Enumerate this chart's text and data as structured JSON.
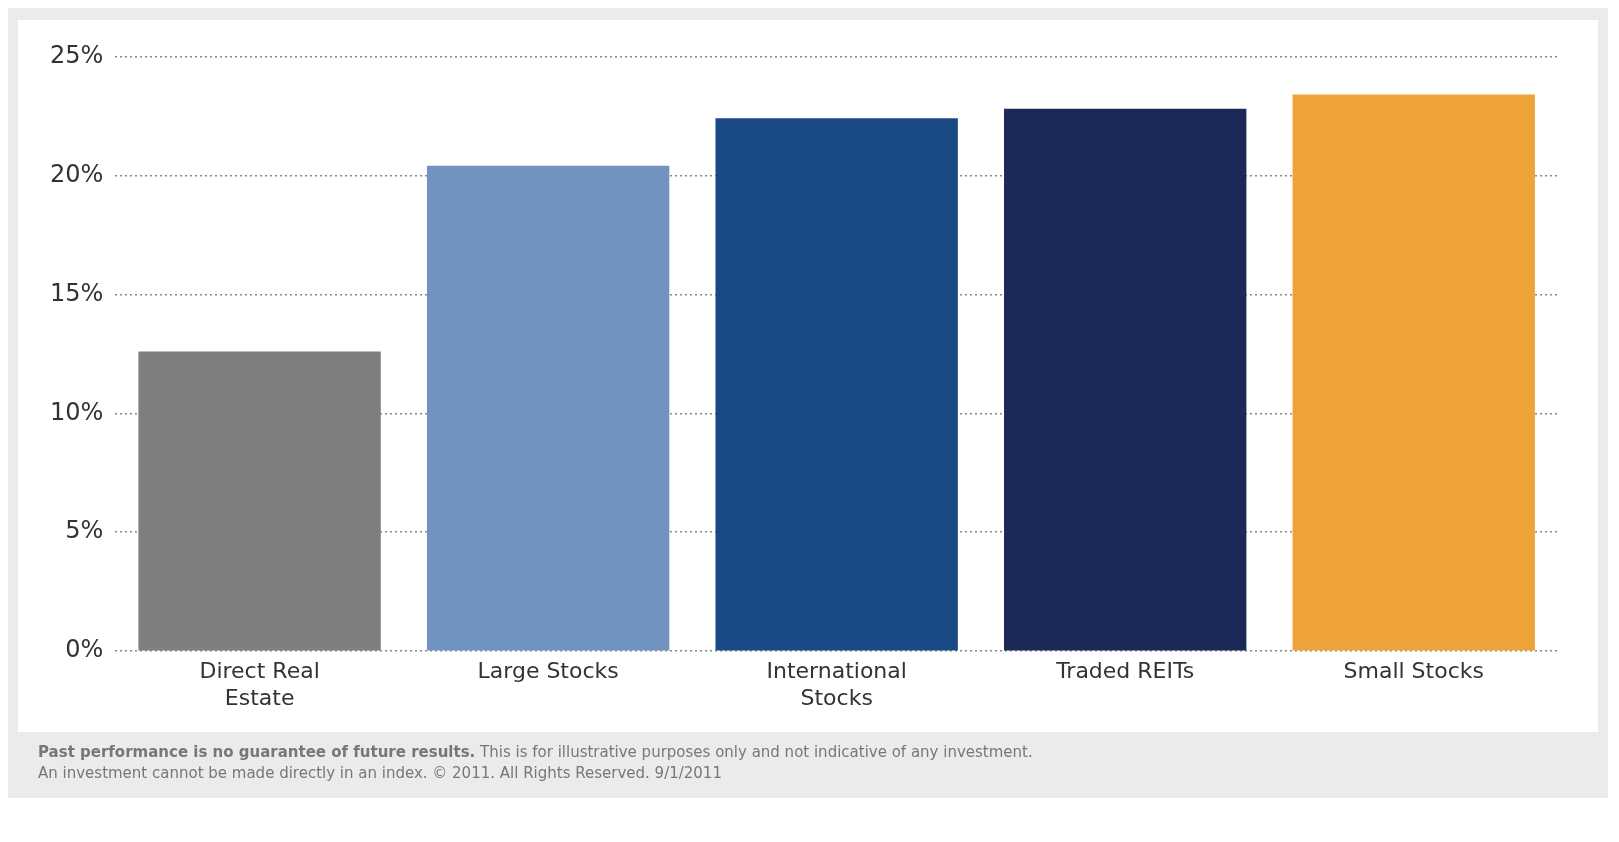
{
  "chart_data": {
    "type": "bar",
    "categories": [
      "Direct Real Estate",
      "Large Stocks",
      "International Stocks",
      "Traded REITs",
      "Small Stocks"
    ],
    "values": [
      12.6,
      20.4,
      22.4,
      22.8,
      23.4
    ],
    "colors": [
      "#7f7f7f",
      "#7093c0",
      "#1a4a85",
      "#1c2855",
      "#eea33a"
    ],
    "ylim": [
      0,
      25
    ],
    "yticks": [
      {
        "value": 0,
        "label": "0%"
      },
      {
        "value": 5,
        "label": "5%"
      },
      {
        "value": 10,
        "label": "10%"
      },
      {
        "value": 15,
        "label": "15%"
      },
      {
        "value": 20,
        "label": "20%"
      },
      {
        "value": 25,
        "label": "25%"
      }
    ],
    "grid": "y",
    "annotations": [
      "Past performance is no guarantee of future results.",
      "This is for illustrative purposes only and not indicative of any investment.",
      "An investment cannot be made directly in an index. © 2011. All Rights Reserved. 9/1/2011"
    ]
  }
}
